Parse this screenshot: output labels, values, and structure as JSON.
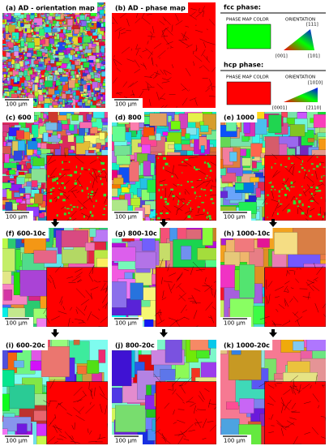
{
  "panels": [
    {
      "label": "(a) AD - orientation map",
      "scale": "100 µm"
    },
    {
      "label": "(b) AD - phase map",
      "scale": "100 µm"
    },
    {
      "label": "(c) 600",
      "scale": "100 µm"
    },
    {
      "label": "(d) 800",
      "scale": "100 µm"
    },
    {
      "label": "(e) 1000",
      "scale": "100 µm"
    },
    {
      "label": "(f) 600-10c",
      "scale": "100 µm"
    },
    {
      "label": "(g) 800-10c",
      "scale": "100 µm"
    },
    {
      "label": "(h) 1000-10c",
      "scale": "100 µm"
    },
    {
      "label": "(i) 600-20c",
      "scale": "100 µm"
    },
    {
      "label": "(j) 800-20c",
      "scale": "100 µm"
    },
    {
      "label": "(k) 1000-20c",
      "scale": "100 µm"
    }
  ],
  "legend": {
    "fcc": {
      "title": "fcc phase:",
      "color_label": "PHASE MAP COLOR",
      "orientation_label": "ORIENTATION",
      "poles": [
        "[111]",
        "[001]",
        "[101]"
      ]
    },
    "hcp": {
      "title": "hcp phase:",
      "color_label": "PHASE MAP COLOR",
      "orientation_label": "ORIENTATION",
      "poles": [
        "[101̄0]",
        "[0001]",
        "[2̄110]"
      ]
    }
  }
}
